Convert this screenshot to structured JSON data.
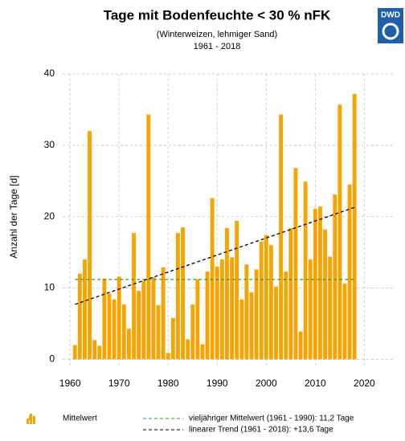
{
  "chart_data": {
    "type": "bar",
    "title": "Tage mit Bodenfeuchte < 30 % nFK",
    "subtitle": "(Winterweizen, lehmiger Sand)",
    "period": "1961 - 2018",
    "logo": "DWD",
    "y_label": "Anzahl der Tage [d]",
    "color": "#f7a400",
    "x": [
      1961,
      1962,
      1963,
      1964,
      1965,
      1966,
      1967,
      1968,
      1969,
      1970,
      1971,
      1972,
      1973,
      1974,
      1975,
      1976,
      1977,
      1978,
      1979,
      1980,
      1981,
      1982,
      1983,
      1984,
      1985,
      1986,
      1987,
      1988,
      1989,
      1990,
      1991,
      1992,
      1993,
      1994,
      1995,
      1996,
      1997,
      1998,
      1999,
      2000,
      2001,
      2002,
      2003,
      2004,
      2005,
      2006,
      2007,
      2008,
      2009,
      2010,
      2011,
      2012,
      2013,
      2014,
      2015,
      2016,
      2017,
      2018
    ],
    "values": [
      2,
      12,
      14,
      32,
      2.7,
      1.9,
      11.3,
      9.2,
      8.4,
      11.6,
      7.7,
      4.3,
      17.7,
      9.6,
      11,
      34.3,
      11.5,
      7.6,
      12.9,
      0.9,
      5.8,
      17.7,
      18.5,
      2.8,
      7.7,
      11.2,
      2.1,
      12.3,
      22.6,
      13,
      14,
      18.4,
      14.3,
      19.4,
      8.4,
      13.3,
      9.4,
      12.6,
      16.5,
      17.4,
      16,
      10.2,
      34.3,
      12.3,
      18.4,
      26.8,
      3.9,
      24.9,
      14,
      21.1,
      21.4,
      18.2,
      14.4,
      23.1,
      35.7,
      10.6,
      24.5,
      37.2
    ],
    "legend_bar": "Mittelwert",
    "mean": {
      "name": "vieljähriger Mittelwert (1961 - 1990): 11,2 Tage",
      "value": 11.2,
      "color": "#2ca02c"
    },
    "trend": {
      "name": "linearer Trend (1961 - 2018): +13,6 Tage",
      "x": [
        1961,
        2018
      ],
      "values": [
        7.7,
        21.3
      ],
      "color": "#000000"
    },
    "xlim": [
      1958.5,
      2026
    ],
    "ylim": [
      -1.2,
      40
    ],
    "xticks": [
      1960,
      1970,
      1980,
      1990,
      2000,
      2010,
      2020
    ],
    "yticks": [
      0,
      10,
      20,
      30,
      40
    ],
    "grid": true
  }
}
